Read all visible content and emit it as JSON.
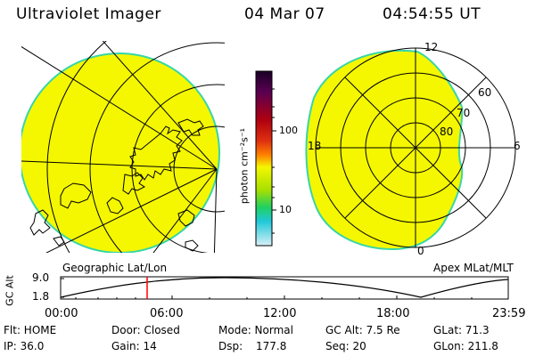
{
  "header": {
    "instrument": "Ultraviolet Imager",
    "date": "04 Mar 07",
    "time": "04:54:55 UT"
  },
  "colors": {
    "fill": "#f4f700",
    "limb": "#37d6a8",
    "line": "#000000",
    "cursor": "#ff0000"
  },
  "colorbar": {
    "unit": "photon cm⁻²s⁻¹",
    "ticks": [
      "100",
      "10"
    ],
    "scale": "log",
    "gradient": [
      "#1a0028",
      "#5a0050",
      "#b00010",
      "#e03010",
      "#ff8000",
      "#f4f700",
      "#a8e000",
      "#20d060",
      "#20c8d8",
      "#d8f0f8"
    ]
  },
  "panels": {
    "left_label": "Geographic Lat/Lon",
    "right_label": "Apex MLat/MLT"
  },
  "polar": {
    "mlt_labels": [
      "12",
      "18",
      "6",
      "0"
    ],
    "mlat_labels": [
      "60",
      "70",
      "80"
    ]
  },
  "altitude_plot": {
    "ylabel": "GC Alt",
    "y_ticks": [
      "9.0",
      "1.8"
    ],
    "x_ticks": [
      "00:00",
      "06:00",
      "12:00",
      "18:00",
      "23:59"
    ],
    "current_time": "04:54:55"
  },
  "info": {
    "row1": [
      "Flt: HOME",
      "Door: Closed",
      "Mode: Normal",
      "GC Alt: 7.5 Re",
      "GLat: 71.3"
    ],
    "row2": [
      "IP: 36.0",
      "Gain: 14",
      "Dsp:",
      "177.8",
      "Seq: 20",
      "GLon: 211.8"
    ]
  }
}
